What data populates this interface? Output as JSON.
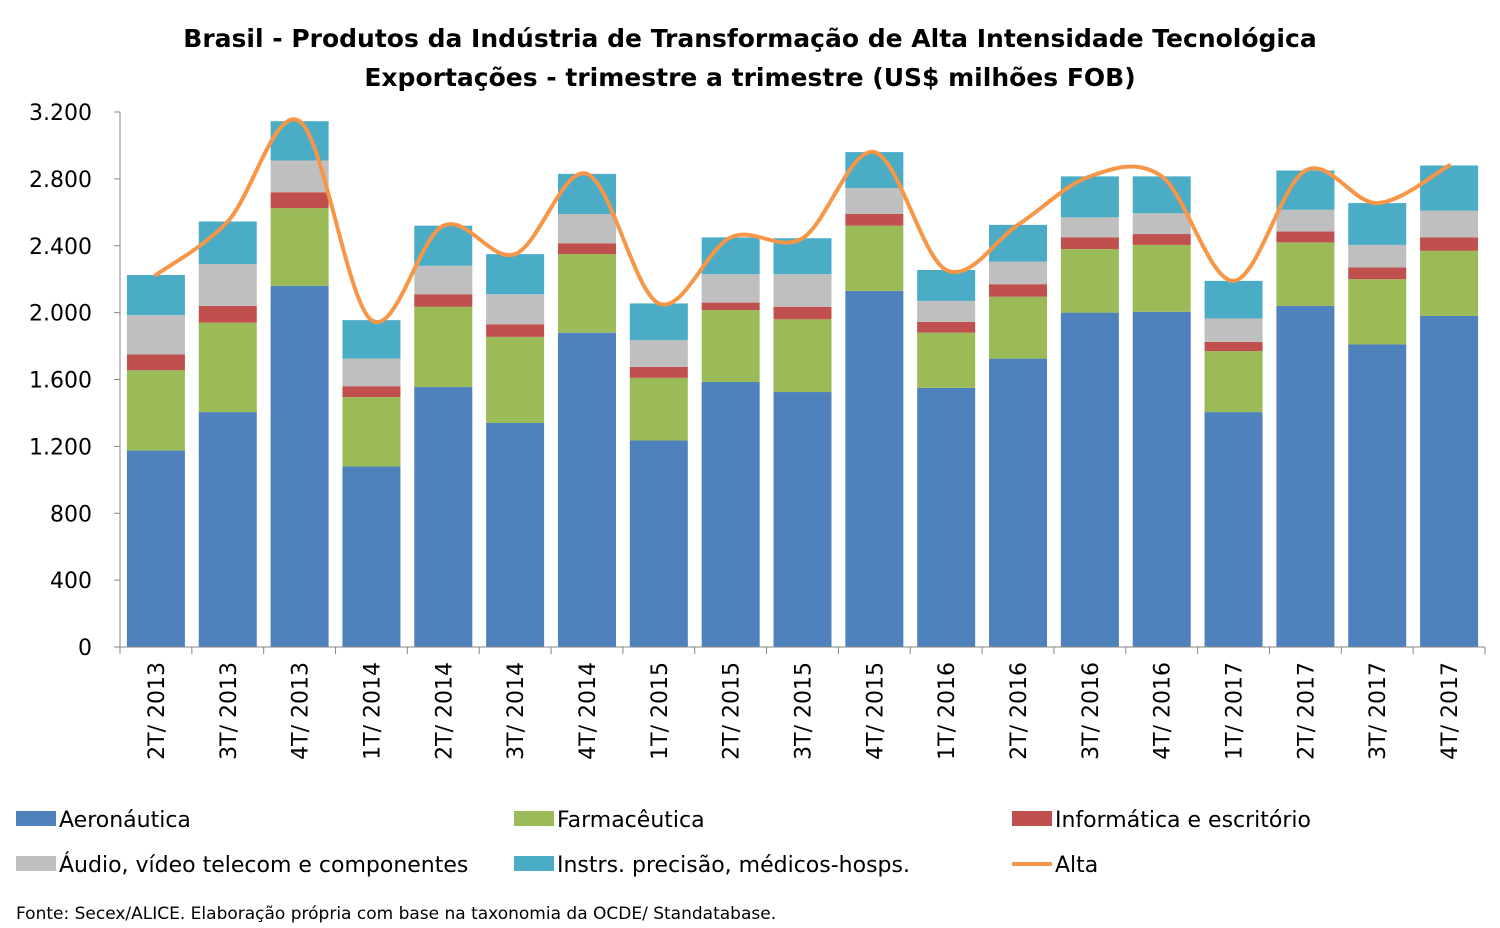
{
  "chart_data": {
    "type": "bar",
    "stacked": true,
    "title": "Brasil - Produtos da Indústria de Transformação de Alta Intensidade Tecnológica",
    "subtitle": "Exportações - trimestre a trimestre (US$ milhões FOB)",
    "xlabel": "",
    "ylabel": "",
    "ylim": [
      0,
      3200
    ],
    "yticks": [
      0,
      400,
      800,
      1200,
      1600,
      2000,
      2400,
      2800,
      3200
    ],
    "ytick_labels": [
      "0",
      "400",
      "800",
      "1.200",
      "1.600",
      "2.000",
      "2.400",
      "2.800",
      "3.200"
    ],
    "grid": false,
    "legend_position": "bottom",
    "categories": [
      "2T/ 2013",
      "3T/ 2013",
      "4T/ 2013",
      "1T/ 2014",
      "2T/ 2014",
      "3T/ 2014",
      "4T/ 2014",
      "1T/ 2015",
      "2T/ 2015",
      "3T/ 2015",
      "4T/ 2015",
      "1T/ 2016",
      "2T/ 2016",
      "3T/ 2016",
      "4T/ 2016",
      "1T/ 2017",
      "2T/ 2017",
      "3T/ 2017",
      "4T/ 2017"
    ],
    "series": [
      {
        "name": "Aeronáutica",
        "kind": "bar",
        "color": "#4f81bd",
        "values": [
          1175,
          1405,
          2160,
          1080,
          1555,
          1340,
          1880,
          1235,
          1585,
          1525,
          2130,
          1550,
          1725,
          2000,
          2005,
          1405,
          2040,
          1810,
          1980
        ]
      },
      {
        "name": "Farmacêutica",
        "kind": "bar",
        "color": "#9bbb59",
        "values": [
          480,
          535,
          465,
          415,
          480,
          515,
          470,
          375,
          430,
          435,
          390,
          330,
          370,
          380,
          400,
          365,
          380,
          390,
          390
        ]
      },
      {
        "name": "Informática e escritório",
        "kind": "bar",
        "color": "#c0504d",
        "values": [
          95,
          100,
          95,
          65,
          75,
          75,
          65,
          65,
          45,
          75,
          70,
          65,
          75,
          70,
          65,
          55,
          65,
          70,
          80
        ]
      },
      {
        "name": "Áudio, vídeo telecom e componentes",
        "kind": "bar",
        "color": "#bfbfbf",
        "values": [
          235,
          250,
          190,
          165,
          170,
          180,
          175,
          160,
          170,
          195,
          155,
          125,
          135,
          120,
          125,
          140,
          130,
          135,
          160
        ]
      },
      {
        "name": "Instrs. precisão, médicos-hosps.",
        "kind": "bar",
        "color": "#4bacc6",
        "values": [
          240,
          255,
          235,
          230,
          240,
          240,
          240,
          220,
          220,
          215,
          215,
          185,
          220,
          245,
          220,
          225,
          235,
          250,
          270
        ]
      },
      {
        "name": "Alta",
        "kind": "line",
        "color": "#f79646",
        "values": [
          2225,
          2545,
          3145,
          1955,
          2520,
          2350,
          2830,
          2055,
          2450,
          2445,
          2960,
          2255,
          2525,
          2815,
          2815,
          2190,
          2850,
          2655,
          2880
        ]
      }
    ]
  },
  "source_note": "Fonte: Secex/ALICE. Elaboração própria com base na taxonomia da OCDE/ Standatabase."
}
